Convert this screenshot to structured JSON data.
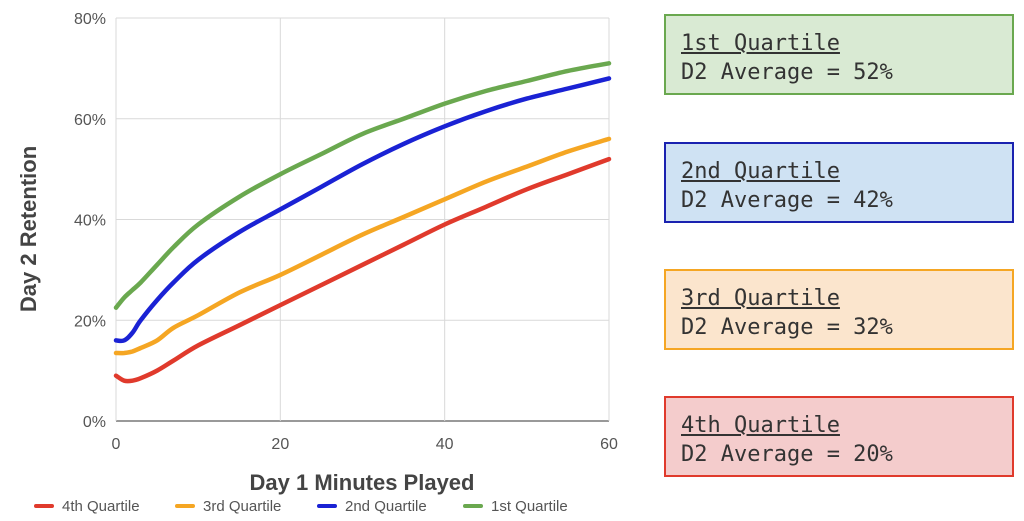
{
  "chart_data": {
    "type": "line",
    "xlabel": "Day 1 Minutes Played",
    "ylabel": "Day 2 Retention",
    "xlim": [
      0,
      60
    ],
    "ylim": [
      0,
      80
    ],
    "x_ticks": [
      "0",
      "20",
      "40",
      "60"
    ],
    "y_ticks": [
      "0%",
      "20%",
      "40%",
      "60%",
      "80%"
    ],
    "grid": true,
    "legend_position": "bottom",
    "x": [
      0,
      1,
      2,
      3,
      5,
      7,
      10,
      15,
      20,
      25,
      30,
      35,
      40,
      45,
      50,
      55,
      60
    ],
    "series": [
      {
        "name": "4th Quartile",
        "color": "#e03a2c",
        "values": [
          9,
          8,
          8,
          8.5,
          10,
          12,
          15,
          19,
          23,
          27,
          31,
          35,
          39,
          42.5,
          46,
          49,
          52
        ]
      },
      {
        "name": "3rd Quartile",
        "color": "#f5a623",
        "values": [
          13.5,
          13.5,
          13.8,
          14.5,
          16,
          18.5,
          21,
          25.5,
          29,
          33,
          37,
          40.5,
          44,
          47.5,
          50.5,
          53.5,
          56
        ]
      },
      {
        "name": "2nd Quartile",
        "color": "#1a22d4",
        "values": [
          16,
          16,
          17.5,
          20,
          24,
          27.5,
          32,
          37.5,
          42,
          46.5,
          51,
          55,
          58.5,
          61.5,
          64,
          66,
          68
        ]
      },
      {
        "name": "1st Quartile",
        "color": "#6aa84f",
        "values": [
          22.5,
          24.5,
          26,
          27.5,
          31,
          34.5,
          39,
          44.5,
          49,
          53,
          57,
          60,
          63,
          65.5,
          67.5,
          69.5,
          71
        ]
      }
    ]
  },
  "quartile_boxes": [
    {
      "title": "1st Quartile",
      "average": "D2 Average = 52%",
      "border": "#6aa84f",
      "fill": "#d9ead3"
    },
    {
      "title": "2nd Quartile",
      "average": "D2 Average = 42%",
      "border": "#1a22b0",
      "fill": "#cfe2f3"
    },
    {
      "title": "3rd Quartile",
      "average": "D2 Average = 32%",
      "border": "#f5a623",
      "fill": "#fbe5cd"
    },
    {
      "title": "4th Quartile",
      "average": "D2 Average = 20%",
      "border": "#e03a2c",
      "fill": "#f4cccc"
    }
  ]
}
